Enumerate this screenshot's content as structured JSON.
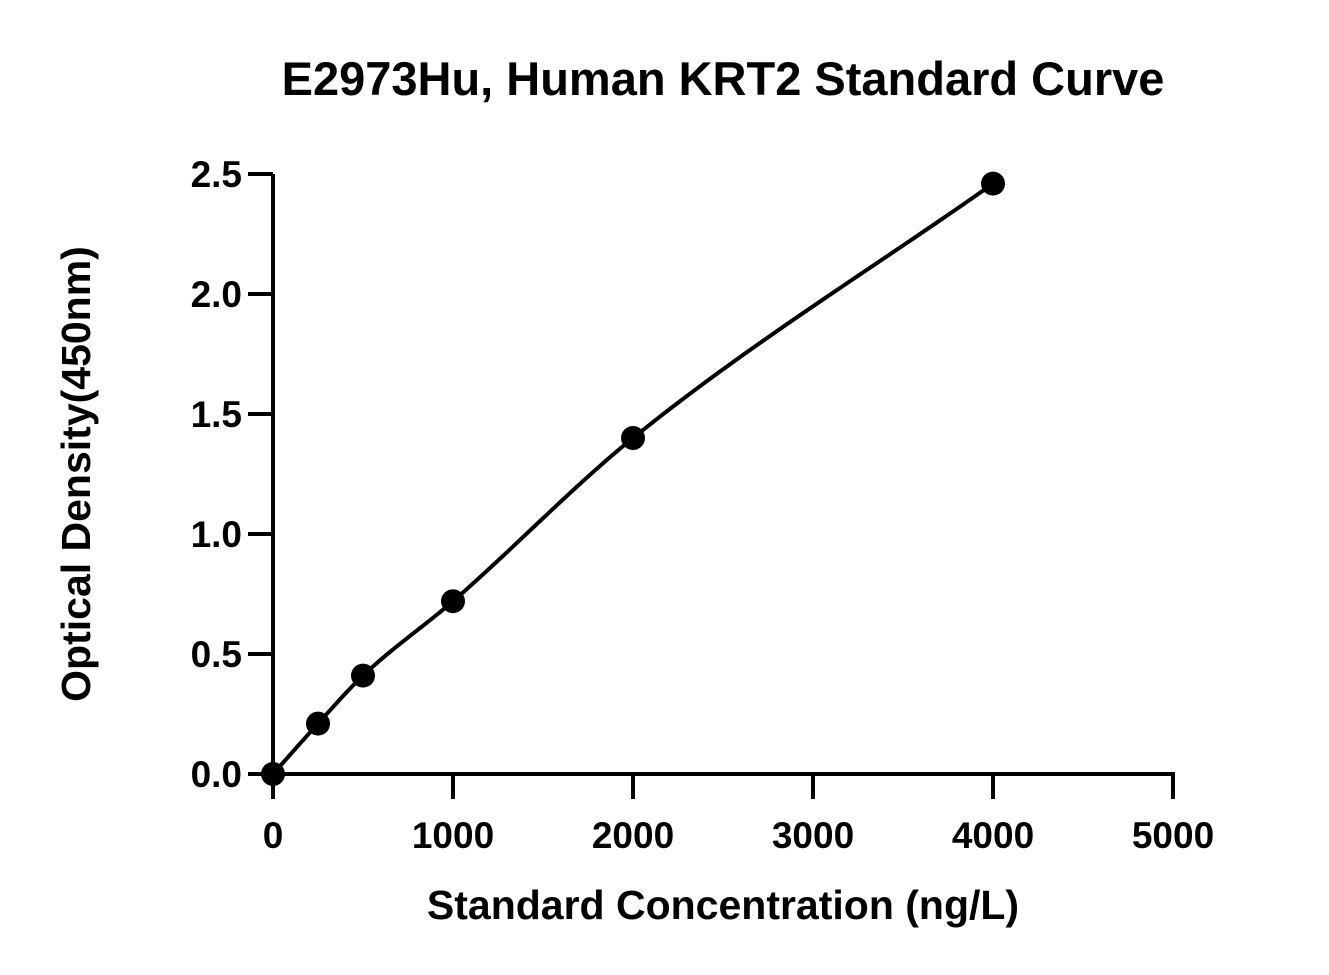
{
  "chart_data": {
    "type": "scatter",
    "title": "E2973Hu, Human KRT2 Standard Curve",
    "xlabel": "Standard Concentration (ng/L)",
    "ylabel": "Optical Density(450nm)",
    "xlim": [
      0,
      5000
    ],
    "ylim": [
      0,
      2.5
    ],
    "x_ticks": [
      "0",
      "1000",
      "2000",
      "3000",
      "4000",
      "5000"
    ],
    "y_ticks": [
      "0.0",
      "0.5",
      "1.0",
      "1.5",
      "2.0",
      "2.5"
    ],
    "grid": false,
    "legend": "none",
    "fit_line": true,
    "colors": {
      "points": "#000000",
      "line": "#000000",
      "axes": "#000000"
    },
    "series": [
      {
        "x": [
          0,
          250,
          500,
          1000,
          2000,
          4000
        ],
        "values": [
          0.0,
          0.21,
          0.41,
          0.72,
          1.4,
          2.46
        ]
      }
    ]
  }
}
